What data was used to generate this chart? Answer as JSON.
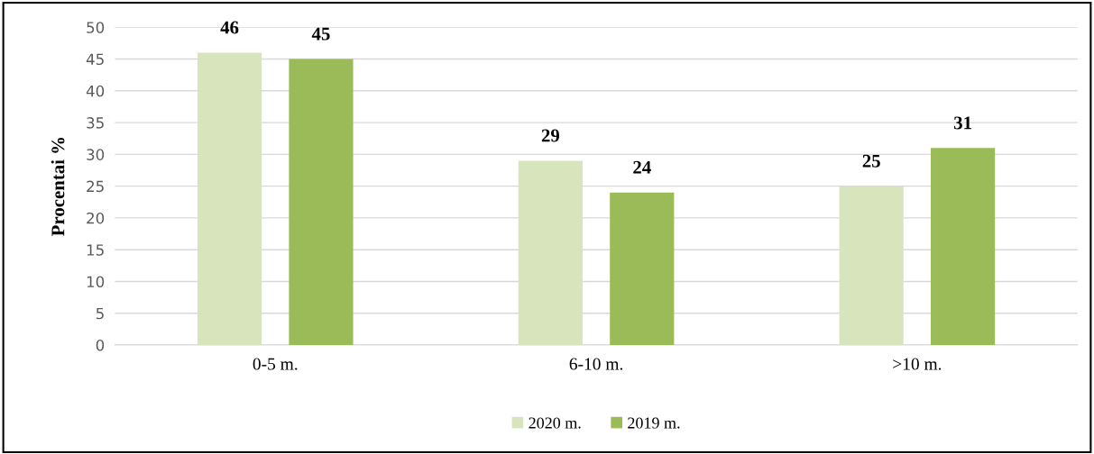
{
  "chart_data": {
    "type": "bar",
    "ylabel": "Procentai %",
    "categories": [
      "0-5 m.",
      "6-10 m.",
      ">10 m."
    ],
    "series": [
      {
        "name": "2020 m.",
        "color": "#d8e4bc",
        "values": [
          46,
          29,
          25
        ]
      },
      {
        "name": "2019 m.",
        "color": "#9bbb59",
        "values": [
          45,
          24,
          31
        ]
      }
    ],
    "ylim": [
      0,
      50
    ],
    "yticks": [
      0,
      5,
      10,
      15,
      20,
      25,
      30,
      35,
      40,
      45,
      50
    ],
    "grid": "y",
    "legend": "bottom",
    "data_labels": true
  }
}
